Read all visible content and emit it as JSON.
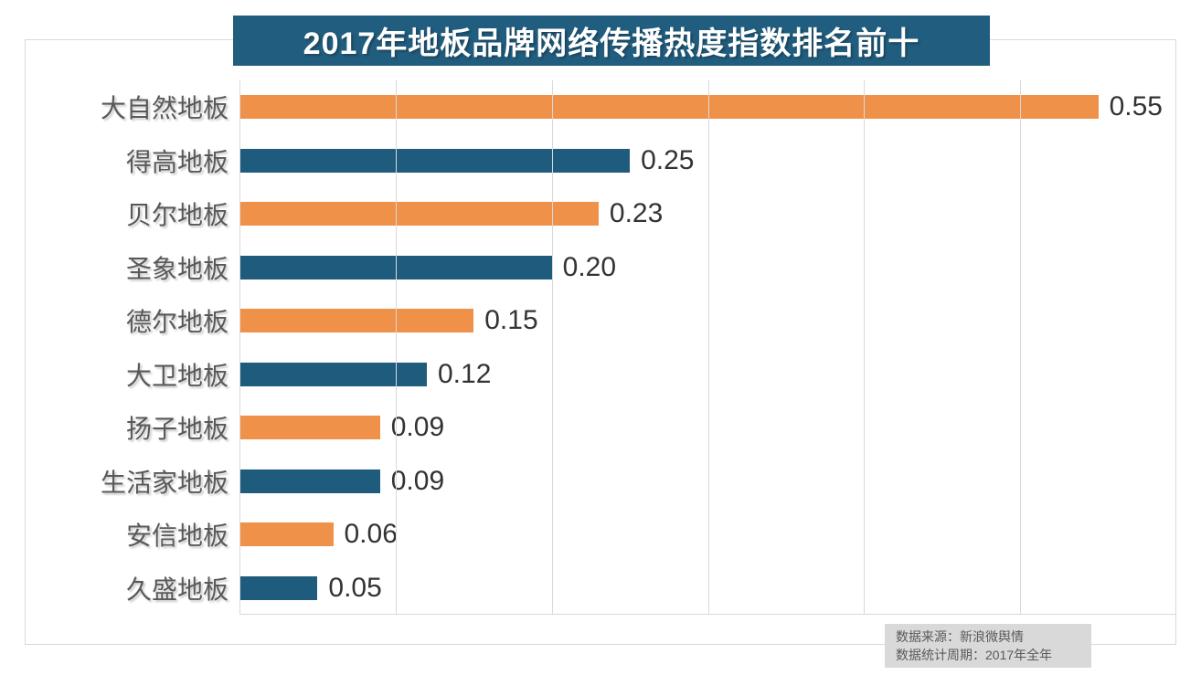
{
  "title_banner": {
    "text": "2017年地板品牌网络传播热度指数排名前十"
  },
  "source_box": {
    "line1": "数据来源：新浪微舆情",
    "line2": "数据统计周期：2017年全年"
  },
  "chart_data": {
    "type": "bar",
    "orientation": "horizontal",
    "title": "2017年地板品牌网络传播热度指数排名前十",
    "categories": [
      "大自然地板",
      "得高地板",
      "贝尔地板",
      "圣象地板",
      "德尔地板",
      "大卫地板",
      "扬子地板",
      "生活家地板",
      "安信地板",
      "久盛地板"
    ],
    "values": [
      0.55,
      0.25,
      0.23,
      0.2,
      0.15,
      0.12,
      0.09,
      0.09,
      0.06,
      0.05
    ],
    "value_labels": [
      "0.55",
      "0.25",
      "0.23",
      "0.20",
      "0.15",
      "0.12",
      "0.09",
      "0.09",
      "0.06",
      "0.05"
    ],
    "xlim": [
      0,
      0.6
    ],
    "gridline_step": 0.1,
    "grid": "vertical-gridlines-only",
    "legend": "none",
    "axis_tick_labels": "none",
    "source_lines": [
      "数据来源：新浪微舆情",
      "数据统计周期：2017年全年"
    ]
  },
  "colors": {
    "bar_alternating": [
      "#f0914a",
      "#1f5b7c"
    ],
    "title_banner_bg": "#215d7e",
    "title_text": "#ffffff",
    "grid": "#d9d9d9",
    "card_border": "#d9d9d9",
    "category_label": "#595959",
    "value_label": "#333333",
    "source_bg": "#d9d9d9",
    "source_text": "#595959"
  }
}
